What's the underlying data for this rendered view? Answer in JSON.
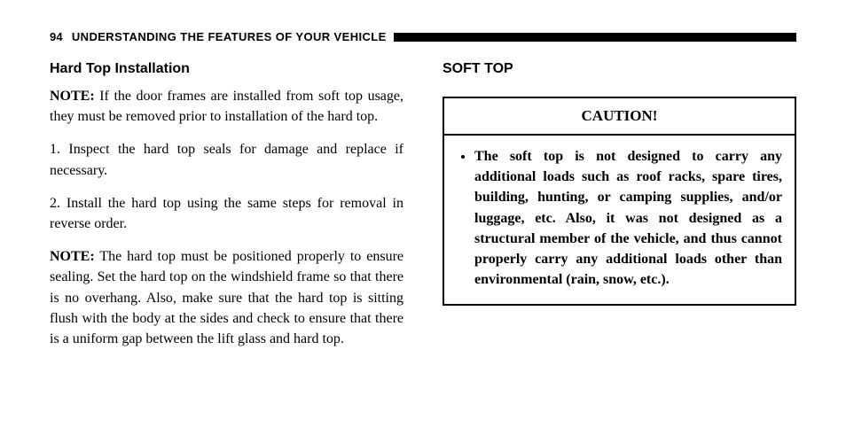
{
  "header": {
    "page_number": "94",
    "chapter_title": "UNDERSTANDING THE FEATURES OF YOUR VEHICLE"
  },
  "left": {
    "subheading": "Hard Top Installation",
    "note1_label": "NOTE:",
    "note1_text": " If the door frames are installed from soft top usage, they must be removed prior to installation of the hard top.",
    "step1": "1. Inspect the hard top seals for damage and replace if necessary.",
    "step2": "2. Install the hard top using the same steps for removal in reverse order.",
    "note2_label": "NOTE:",
    "note2_text": " The hard top must be positioned properly to ensure sealing. Set the hard top on the windshield frame so that there is no overhang. Also, make sure that the hard top is sitting flush with the body at the sides and check to ensure that there is a uniform gap between the lift glass and hard top."
  },
  "right": {
    "section_heading": "SOFT TOP",
    "caution": {
      "title": "CAUTION!",
      "item": "The soft top is not designed to carry any additional loads such as roof racks, spare tires, building, hunting, or camping supplies, and/or luggage, etc. Also, it was not designed as a structural member of the vehicle, and thus cannot properly carry any additional loads other than environmental (rain, snow, etc.)."
    }
  }
}
